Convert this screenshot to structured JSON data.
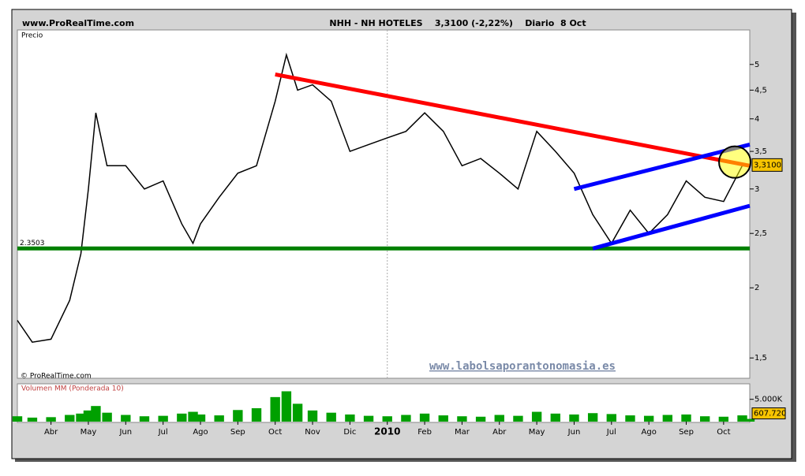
{
  "chart_data": {
    "type": "line",
    "site": "www.ProRealTime.com",
    "title": "NHH - NH HOTELES    3,3100 (-2,22%)    Diario  8 Oct",
    "y_label": "Precio",
    "copyright": "© ProRealTime.com",
    "watermark": "www.labolsaporantonomasia.es",
    "log_y": true,
    "xlim": [
      -0.9,
      18.7
    ],
    "xticks": [
      {
        "value": 0,
        "label": "Abr"
      },
      {
        "value": 1,
        "label": "May"
      },
      {
        "value": 2,
        "label": "Jun"
      },
      {
        "value": 3,
        "label": "Jul"
      },
      {
        "value": 4,
        "label": "Ago"
      },
      {
        "value": 5,
        "label": "Sep"
      },
      {
        "value": 6,
        "label": "Oct"
      },
      {
        "value": 7,
        "label": "Nov"
      },
      {
        "value": 8,
        "label": "Dic"
      },
      {
        "value": 9,
        "label": "2010"
      },
      {
        "value": 10,
        "label": "Feb"
      },
      {
        "value": 11,
        "label": "Mar"
      },
      {
        "value": 12,
        "label": "Abr"
      },
      {
        "value": 13,
        "label": "May"
      },
      {
        "value": 14,
        "label": "Jun"
      },
      {
        "value": 15,
        "label": "Jul"
      },
      {
        "value": 16,
        "label": "Ago"
      },
      {
        "value": 17,
        "label": "Sep"
      },
      {
        "value": 18,
        "label": "Oct"
      }
    ],
    "ylim": [
      1.38,
      5.76
    ],
    "yticks": [
      {
        "value": 1.5,
        "label": "1,5"
      },
      2,
      {
        "value": 2.5,
        "label": "2,5"
      },
      3,
      {
        "value": 3.5,
        "label": "3,5"
      },
      4,
      {
        "value": 4.5,
        "label": "4,5"
      },
      5
    ],
    "series": [
      {
        "name": "NHH",
        "color": "#000000",
        "x": [
          -0.9,
          -0.5,
          0,
          0.5,
          0.8,
          1.0,
          1.2,
          1.5,
          2,
          2.5,
          3,
          3.5,
          3.8,
          4,
          4.5,
          5,
          5.5,
          6,
          6.3,
          6.6,
          7,
          7.5,
          8,
          8.5,
          9,
          9.5,
          10,
          10.5,
          11,
          11.5,
          12,
          12.5,
          13,
          13.5,
          14,
          14.5,
          15,
          15.5,
          16,
          16.5,
          17,
          17.5,
          18,
          18.5,
          18.7
        ],
        "values": [
          1.75,
          1.6,
          1.62,
          1.9,
          2.3,
          3.0,
          4.1,
          3.3,
          3.3,
          3.0,
          3.1,
          2.6,
          2.4,
          2.6,
          2.9,
          3.2,
          3.3,
          4.3,
          5.2,
          4.5,
          4.6,
          4.3,
          3.5,
          3.6,
          3.7,
          3.8,
          4.1,
          3.8,
          3.3,
          3.4,
          3.2,
          3.0,
          3.8,
          3.5,
          3.2,
          2.7,
          2.4,
          2.75,
          2.5,
          2.7,
          3.1,
          2.9,
          2.85,
          3.3,
          3.31
        ]
      }
    ],
    "last_price": {
      "value": 3.31,
      "label": "3,3100"
    },
    "lines": [
      {
        "color": "#008000",
        "x": [
          -0.9,
          18.7
        ],
        "y": [
          2.3503,
          2.3503
        ],
        "label": "2.3503"
      },
      {
        "color": "#ff0000",
        "x": [
          6.0,
          18.7
        ],
        "y": [
          4.8,
          3.3
        ]
      },
      {
        "color": "#0000ff",
        "x": [
          14.0,
          18.7
        ],
        "y": [
          3.0,
          3.6
        ]
      },
      {
        "color": "#0000ff",
        "x": [
          14.5,
          18.7
        ],
        "y": [
          2.35,
          2.8
        ]
      }
    ],
    "highlight": {
      "x": 18.3,
      "y": 3.35,
      "color": "#ffff00"
    },
    "volume": {
      "name": "Volumen MM (Ponderada 10)",
      "color": "#00a000",
      "ylim": [
        0,
        8300
      ],
      "yticks": [
        {
          "value": 5000,
          "label": "5.000K"
        }
      ],
      "values": [
        1200,
        900,
        1000,
        1500,
        1800,
        2500,
        3500,
        2000,
        1500,
        1200,
        1300,
        1800,
        2200,
        1600,
        1400,
        2600,
        3000,
        5500,
        6800,
        4000,
        2500,
        2000,
        1600,
        1300,
        1200,
        1500,
        1800,
        1400,
        1200,
        1100,
        1500,
        1300,
        2200,
        1800,
        1600,
        1900,
        1700,
        1400,
        1300,
        1500,
        1600,
        1200,
        1100,
        1400,
        607.72
      ],
      "value_label": "607.720"
    }
  }
}
